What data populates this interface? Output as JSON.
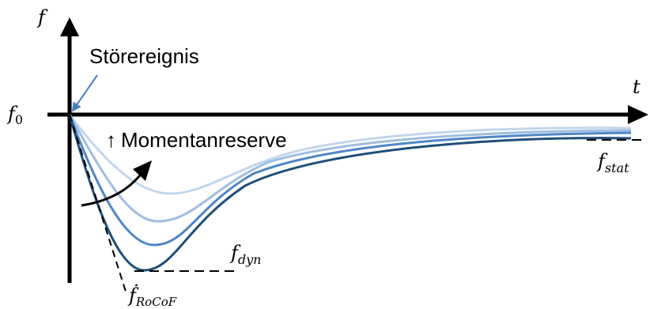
{
  "labels": {
    "y_axis": "f",
    "x_axis": "t",
    "f0_base": "f",
    "f0_sub": "0",
    "event": "Störereignis",
    "inertia_arrow": "↑",
    "inertia": "Momentanreserve",
    "fdyn_base": "f",
    "fdyn_sub": "dyn",
    "fstat_base": "f",
    "fstat_sub": "stat",
    "rocof_base": "ḟ",
    "rocof_sub": "RoCoF"
  },
  "colors": {
    "axis": "#000000",
    "curve_lightest": "#c2d6ec",
    "curve_light": "#9ebde0",
    "curve_mid": "#4f86c6",
    "curve_dark": "#1f4e79",
    "event_arrow": "#4a7ebb"
  }
}
